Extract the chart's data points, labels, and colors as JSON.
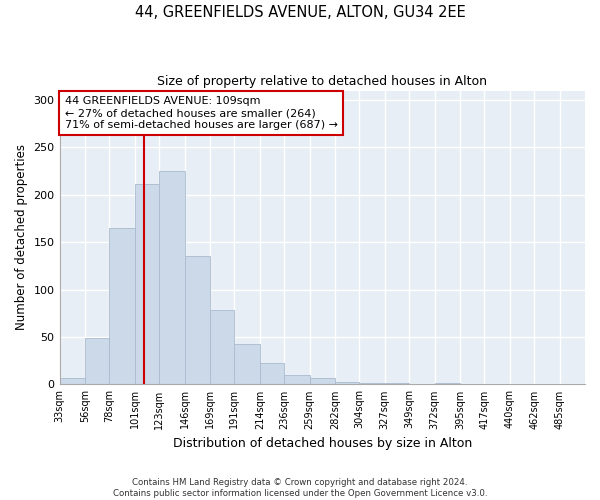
{
  "title": "44, GREENFIELDS AVENUE, ALTON, GU34 2EE",
  "subtitle": "Size of property relative to detached houses in Alton",
  "xlabel": "Distribution of detached houses by size in Alton",
  "ylabel": "Number of detached properties",
  "property_label": "44 GREENFIELDS AVENUE: 109sqm",
  "annotation_line1": "← 27% of detached houses are smaller (264)",
  "annotation_line2": "71% of semi-detached houses are larger (687) →",
  "bar_color": "#ccd9e8",
  "bar_edge_color": "#aabbd0",
  "vline_color": "#cc0000",
  "vline_x": 109,
  "footer1": "Contains HM Land Registry data © Crown copyright and database right 2024.",
  "footer2": "Contains public sector information licensed under the Open Government Licence v3.0.",
  "ylim": [
    0,
    310
  ],
  "bin_edges": [
    33,
    56,
    78,
    101,
    123,
    146,
    169,
    191,
    214,
    236,
    259,
    282,
    304,
    327,
    349,
    372,
    395,
    417,
    440,
    462,
    485
  ],
  "bin_heights": [
    7,
    49,
    165,
    211,
    225,
    135,
    78,
    43,
    23,
    10,
    7,
    3,
    2,
    2,
    0,
    1,
    0,
    0,
    0,
    0
  ]
}
